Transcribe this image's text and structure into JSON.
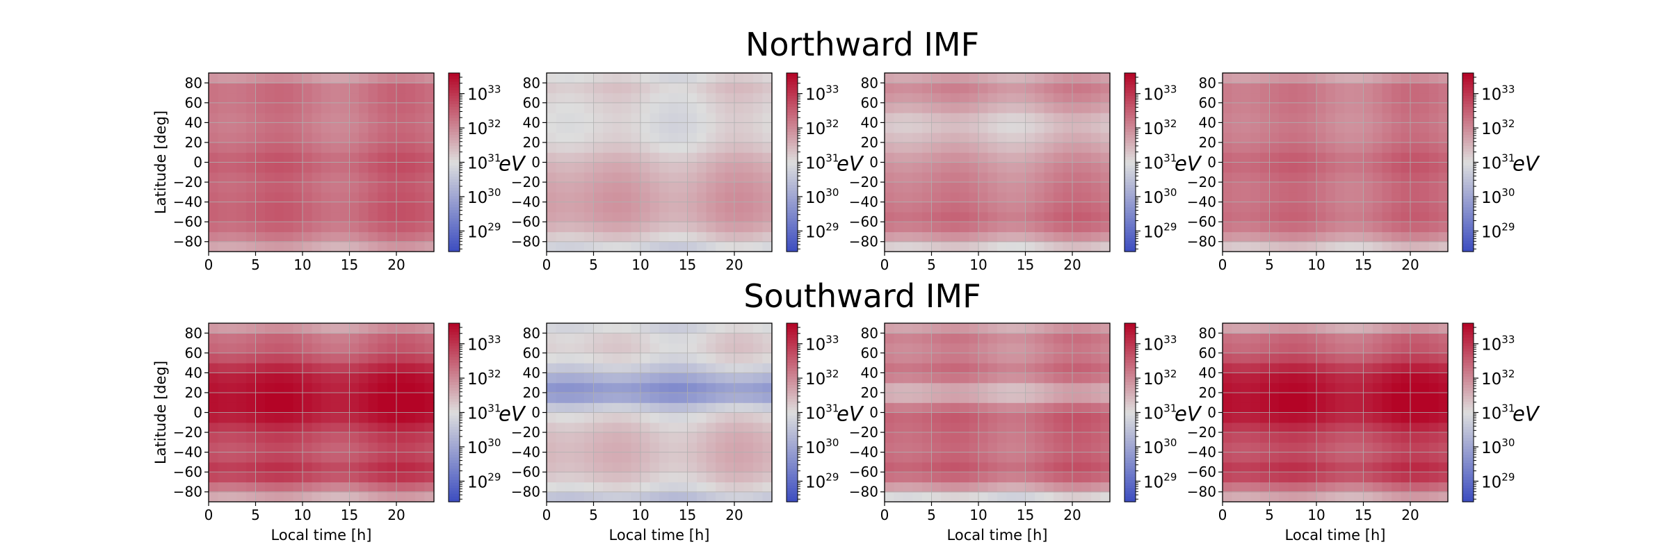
{
  "figure": {
    "row_titles": [
      "Northward IMF",
      "Southward IMF"
    ]
  },
  "colors": {
    "colormap": "coolwarm",
    "low": "#3b4cc0",
    "mid": "#dddddd",
    "high": "#b40426",
    "grid": "#b0b0b0"
  },
  "chart_data": [
    {
      "type": "heatmap",
      "row": "Northward IMF",
      "panel": 1,
      "xlabel": "",
      "ylabel": "Latitude [deg]",
      "xlim": [
        0,
        24
      ],
      "ylim": [
        -90,
        90
      ],
      "xticks": [
        0,
        5,
        10,
        15,
        20
      ],
      "yticks": [
        -80,
        -60,
        -40,
        -20,
        0,
        20,
        40,
        60,
        80
      ],
      "colorbar": {
        "scale": "log",
        "unit": "eV",
        "range_exp": [
          28.4,
          33.6
        ],
        "tick_exponents": [
          29,
          30,
          31,
          32,
          33
        ]
      },
      "grid": true,
      "dominant_exp": 32.2,
      "lat_profile_exp": [
        [
          -90,
          31.4
        ],
        [
          -80,
          32.0
        ],
        [
          -60,
          32.5
        ],
        [
          -40,
          32.5
        ],
        [
          -20,
          32.4
        ],
        [
          0,
          32.6
        ],
        [
          20,
          32.3
        ],
        [
          40,
          32.2
        ],
        [
          60,
          32.3
        ],
        [
          80,
          32.3
        ],
        [
          90,
          31.5
        ]
      ]
    },
    {
      "type": "heatmap",
      "row": "Northward IMF",
      "panel": 2,
      "xlabel": "",
      "ylabel": "",
      "xlim": [
        0,
        24
      ],
      "ylim": [
        -90,
        90
      ],
      "xticks": [
        0,
        5,
        10,
        15,
        20
      ],
      "yticks": [
        -80,
        -60,
        -40,
        -20,
        0,
        20,
        40,
        60,
        80
      ],
      "colorbar": {
        "scale": "log",
        "unit": "eV",
        "range_exp": [
          28.4,
          33.6
        ],
        "tick_exponents": [
          29,
          30,
          31,
          32,
          33
        ]
      },
      "grid": true,
      "dominant_exp": 31.4,
      "lat_profile_exp": [
        [
          -90,
          30.6
        ],
        [
          -80,
          31.1
        ],
        [
          -60,
          31.7
        ],
        [
          -40,
          31.8
        ],
        [
          -20,
          31.7
        ],
        [
          0,
          31.5
        ],
        [
          20,
          31.1
        ],
        [
          40,
          31.0
        ],
        [
          60,
          31.1
        ],
        [
          80,
          31.3
        ],
        [
          90,
          30.8
        ]
      ]
    },
    {
      "type": "heatmap",
      "row": "Northward IMF",
      "panel": 3,
      "xlabel": "",
      "ylabel": "",
      "xlim": [
        0,
        24
      ],
      "ylim": [
        -90,
        90
      ],
      "xticks": [
        0,
        5,
        10,
        15,
        20
      ],
      "yticks": [
        -80,
        -60,
        -40,
        -20,
        0,
        20,
        40,
        60,
        80
      ],
      "colorbar": {
        "scale": "log",
        "unit": "eV",
        "range_exp": [
          28.4,
          33.6
        ],
        "tick_exponents": [
          29,
          30,
          31,
          32,
          33
        ]
      },
      "grid": true,
      "dominant_exp": 31.9,
      "lat_profile_exp": [
        [
          -90,
          30.8
        ],
        [
          -80,
          31.6
        ],
        [
          -60,
          32.4
        ],
        [
          -40,
          32.2
        ],
        [
          -20,
          32.1
        ],
        [
          0,
          31.9
        ],
        [
          20,
          31.5
        ],
        [
          40,
          31.2
        ],
        [
          60,
          31.8
        ],
        [
          80,
          32.1
        ],
        [
          90,
          31.3
        ]
      ]
    },
    {
      "type": "heatmap",
      "row": "Northward IMF",
      "panel": 4,
      "xlabel": "",
      "ylabel": "",
      "xlim": [
        0,
        24
      ],
      "ylim": [
        -90,
        90
      ],
      "xticks": [
        0,
        5,
        10,
        15,
        20
      ],
      "yticks": [
        -80,
        -60,
        -40,
        -20,
        0,
        20,
        40,
        60,
        80
      ],
      "colorbar": {
        "scale": "log",
        "unit": "eV",
        "range_exp": [
          28.4,
          33.6
        ],
        "tick_exponents": [
          29,
          30,
          31,
          32,
          33
        ]
      },
      "grid": true,
      "dominant_exp": 32.2,
      "lat_profile_exp": [
        [
          -90,
          30.9
        ],
        [
          -80,
          31.7
        ],
        [
          -60,
          32.4
        ],
        [
          -40,
          32.3
        ],
        [
          -20,
          32.3
        ],
        [
          0,
          32.5
        ],
        [
          20,
          32.2
        ],
        [
          40,
          32.1
        ],
        [
          60,
          32.2
        ],
        [
          80,
          32.2
        ],
        [
          90,
          31.4
        ]
      ]
    },
    {
      "type": "heatmap",
      "row": "Southward IMF",
      "panel": 1,
      "xlabel": "Local time [h]",
      "ylabel": "Latitude [deg]",
      "xlim": [
        0,
        24
      ],
      "ylim": [
        -90,
        90
      ],
      "xticks": [
        0,
        5,
        10,
        15,
        20
      ],
      "yticks": [
        -80,
        -60,
        -40,
        -20,
        0,
        20,
        40,
        60,
        80
      ],
      "colorbar": {
        "scale": "log",
        "unit": "eV",
        "range_exp": [
          28.4,
          33.6
        ],
        "tick_exponents": [
          29,
          30,
          31,
          32,
          33
        ]
      },
      "grid": true,
      "dominant_exp": 33.2,
      "lat_profile_exp": [
        [
          -90,
          31.3
        ],
        [
          -80,
          32.0
        ],
        [
          -60,
          33.1
        ],
        [
          -40,
          32.6
        ],
        [
          -20,
          32.9
        ],
        [
          0,
          33.5
        ],
        [
          20,
          33.5
        ],
        [
          40,
          33.3
        ],
        [
          60,
          32.5
        ],
        [
          80,
          32.3
        ],
        [
          90,
          31.4
        ]
      ]
    },
    {
      "type": "heatmap",
      "row": "Southward IMF",
      "panel": 2,
      "xlabel": "Local time [h]",
      "ylabel": "",
      "xlim": [
        0,
        24
      ],
      "ylim": [
        -90,
        90
      ],
      "xticks": [
        0,
        5,
        10,
        15,
        20
      ],
      "yticks": [
        -80,
        -60,
        -40,
        -20,
        0,
        20,
        40,
        60,
        80
      ],
      "colorbar": {
        "scale": "log",
        "unit": "eV",
        "range_exp": [
          28.4,
          33.6
        ],
        "tick_exponents": [
          29,
          30,
          31,
          32,
          33
        ]
      },
      "grid": true,
      "dominant_exp": 30.6,
      "lat_profile_exp": [
        [
          -90,
          30.3
        ],
        [
          -80,
          30.9
        ],
        [
          -60,
          31.4
        ],
        [
          -40,
          31.5
        ],
        [
          -20,
          31.4
        ],
        [
          0,
          31.0
        ],
        [
          20,
          29.6
        ],
        [
          30,
          29.9
        ],
        [
          40,
          30.5
        ],
        [
          60,
          31.2
        ],
        [
          80,
          31.1
        ],
        [
          90,
          30.7
        ]
      ]
    },
    {
      "type": "heatmap",
      "row": "Southward IMF",
      "panel": 3,
      "xlabel": "Local time [h]",
      "ylabel": "",
      "xlim": [
        0,
        24
      ],
      "ylim": [
        -90,
        90
      ],
      "xticks": [
        0,
        5,
        10,
        15,
        20
      ],
      "yticks": [
        -80,
        -60,
        -40,
        -20,
        0,
        20,
        40,
        60,
        80
      ],
      "colorbar": {
        "scale": "log",
        "unit": "eV",
        "range_exp": [
          28.4,
          33.6
        ],
        "tick_exponents": [
          29,
          30,
          31,
          32,
          33
        ]
      },
      "grid": true,
      "dominant_exp": 32.2,
      "lat_profile_exp": [
        [
          -90,
          30.5
        ],
        [
          -80,
          31.5
        ],
        [
          -60,
          32.6
        ],
        [
          -40,
          32.3
        ],
        [
          -20,
          32.4
        ],
        [
          0,
          32.5
        ],
        [
          20,
          31.3
        ],
        [
          40,
          32.4
        ],
        [
          60,
          32.0
        ],
        [
          80,
          32.2
        ],
        [
          90,
          31.3
        ]
      ]
    },
    {
      "type": "heatmap",
      "row": "Southward IMF",
      "panel": 4,
      "xlabel": "Local time [h]",
      "ylabel": "",
      "xlim": [
        0,
        24
      ],
      "ylim": [
        -90,
        90
      ],
      "xticks": [
        0,
        5,
        10,
        15,
        20
      ],
      "yticks": [
        -80,
        -60,
        -40,
        -20,
        0,
        20,
        40,
        60,
        80
      ],
      "colorbar": {
        "scale": "log",
        "unit": "eV",
        "range_exp": [
          28.4,
          33.6
        ],
        "tick_exponents": [
          29,
          30,
          31,
          32,
          33
        ]
      },
      "grid": true,
      "dominant_exp": 33.2,
      "lat_profile_exp": [
        [
          -90,
          31.3
        ],
        [
          -80,
          32.0
        ],
        [
          -60,
          33.1
        ],
        [
          -40,
          32.6
        ],
        [
          -20,
          32.9
        ],
        [
          0,
          33.5
        ],
        [
          20,
          33.5
        ],
        [
          40,
          33.3
        ],
        [
          60,
          32.5
        ],
        [
          80,
          32.3
        ],
        [
          90,
          31.2
        ]
      ]
    }
  ]
}
